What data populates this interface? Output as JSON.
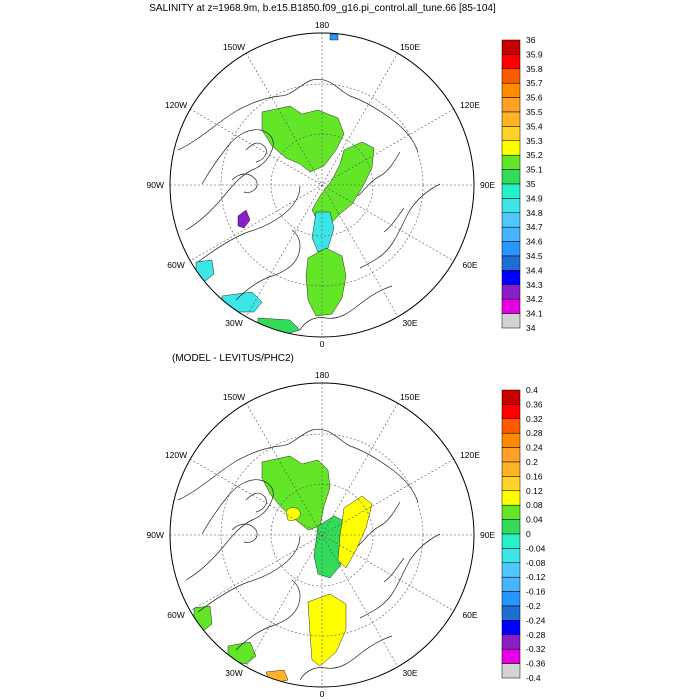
{
  "top_panel": {
    "title": "SALINITY at z=1968.9m, b.e15.B1850.f09_g16.pi_control.all_tune.66 [85-104]",
    "colorbar_labels": [
      "36",
      "35.9",
      "35.8",
      "35.7",
      "35.6",
      "35.5",
      "35.4",
      "35.3",
      "35.2",
      "35.1",
      "35",
      "34.9",
      "34.8",
      "34.7",
      "34.6",
      "34.5",
      "34.4",
      "34.3",
      "34.2",
      "34.1",
      "34"
    ]
  },
  "bottom_panel": {
    "title": "(MODEL - LEVITUS/PHC2)",
    "colorbar_labels": [
      "0.4",
      "0.36",
      "0.32",
      "0.28",
      "0.24",
      "0.2",
      "0.16",
      "0.12",
      "0.08",
      "0.04",
      "0",
      "-0.04",
      "-0.08",
      "-0.12",
      "-0.16",
      "-0.2",
      "-0.24",
      "-0.28",
      "-0.32",
      "-0.36",
      "-0.4"
    ]
  },
  "longitude_labels": {
    "n180": "180",
    "w150": "150W",
    "e150": "150E",
    "w120": "120W",
    "e120": "120E",
    "w90": "90W",
    "e90": "90E",
    "w60": "60W",
    "e60": "60E",
    "w30": "30W",
    "e30": "30E",
    "s0": "0"
  },
  "colors": {
    "palette": [
      "#6e6e6e",
      "#d2d2d2",
      "#e600e6",
      "#8c1ec8",
      "#0000ff",
      "#1e6ed2",
      "#2896ff",
      "#46b4ff",
      "#50c8ff",
      "#3ce6e6",
      "#28f0c8",
      "#32dc5a",
      "#64e628",
      "#ffff00",
      "#ffd228",
      "#ffb428",
      "#ffa028",
      "#ff8c00",
      "#ff5a00",
      "#ff0000",
      "#c80000"
    ],
    "top_green": "#64e628",
    "top_green2": "#32dc5a",
    "top_cyan": "#3ce6e6",
    "top_cyan2": "#50c8ff",
    "bottom_green": "#64e628",
    "bottom_green2": "#32dc5a",
    "bottom_yellow": "#ffff00"
  }
}
